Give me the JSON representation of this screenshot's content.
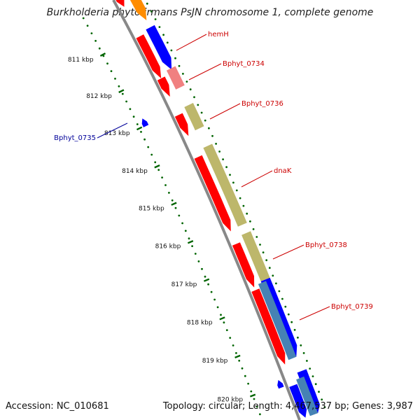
{
  "title": "Burkholderia phytofirmans PsJN chromosome 1, complete genome",
  "accession_text": "Accession: NC_010681",
  "summary_text": "Topology: circular; Length: 4,467,537 bp; Genes: 3,987",
  "colors": {
    "backbone": "#888888",
    "tick_mark": "#006400",
    "red": "#ff0000",
    "blue": "#0000ff",
    "khaki": "#bdb76b",
    "pink": "#f08080",
    "orange": "#ff8c00",
    "steelblue": "#4682b4",
    "label_red": "#cc0000",
    "label_blue": "#000099"
  },
  "ticks": [
    {
      "label": "811 kbp",
      "kbp": 811
    },
    {
      "label": "812 kbp",
      "kbp": 812
    },
    {
      "label": "813 kbp",
      "kbp": 813
    },
    {
      "label": "814 kbp",
      "kbp": 814
    },
    {
      "label": "815 kbp",
      "kbp": 815
    },
    {
      "label": "816 kbp",
      "kbp": 816
    },
    {
      "label": "817 kbp",
      "kbp": 817
    },
    {
      "label": "818 kbp",
      "kbp": 818
    },
    {
      "label": "819 kbp",
      "kbp": 819
    },
    {
      "label": "820 kbp",
      "kbp": 820
    }
  ],
  "labels": [
    {
      "text": "hemH",
      "color": "red"
    },
    {
      "text": "Bphyt_0734",
      "color": "red"
    },
    {
      "text": "Bphyt_0736",
      "color": "red"
    },
    {
      "text": "Bphyt_0735",
      "color": "blue"
    },
    {
      "text": "dnaK",
      "color": "red"
    },
    {
      "text": "Bphyt_0738",
      "color": "red"
    },
    {
      "text": "Bphyt_0739",
      "color": "red"
    }
  ]
}
